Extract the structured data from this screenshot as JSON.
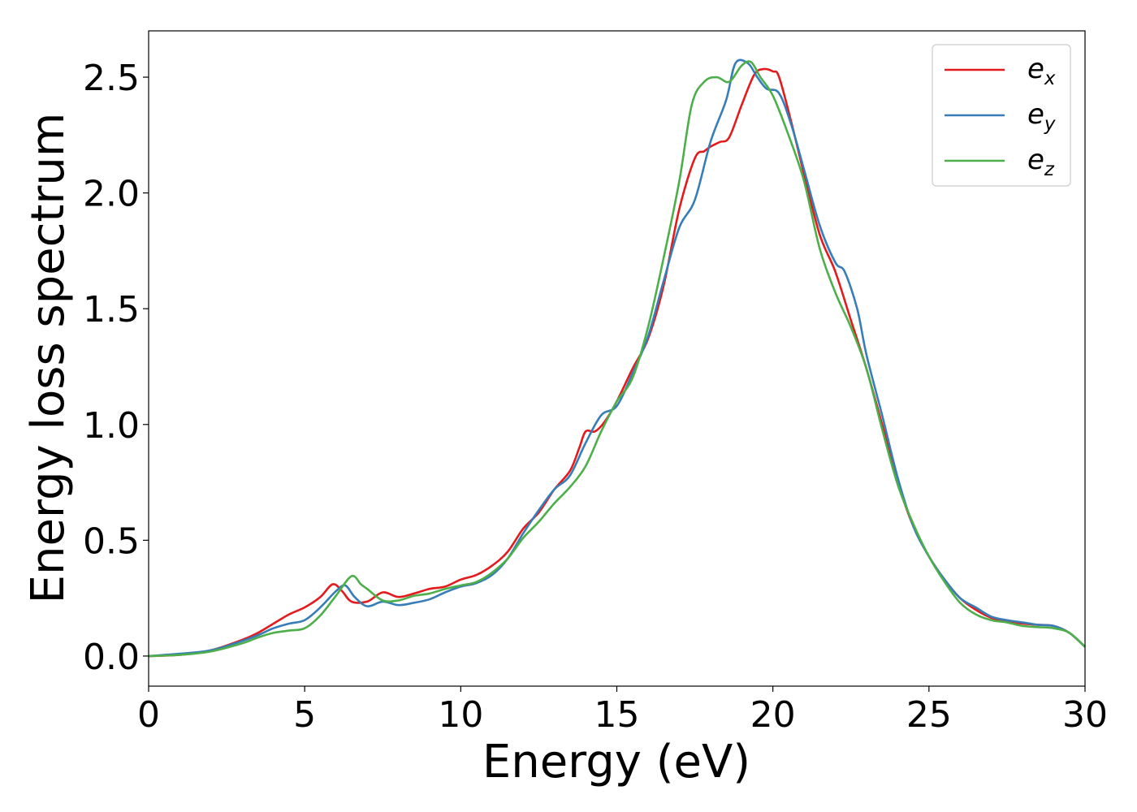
{
  "chart_data": {
    "type": "line",
    "xlabel": "Energy (eV)",
    "ylabel": "Energy loss spectrum",
    "xlim": [
      0,
      30
    ],
    "ylim": [
      -0.13,
      2.7
    ],
    "x_ticks": [
      0,
      5,
      10,
      15,
      20,
      25,
      30
    ],
    "x_tick_labels": [
      "0",
      "5",
      "10",
      "15",
      "20",
      "25",
      "30"
    ],
    "y_ticks": [
      0.0,
      0.5,
      1.0,
      1.5,
      2.0,
      2.5
    ],
    "y_tick_labels": [
      "0.0",
      "0.5",
      "1.0",
      "1.5",
      "2.0",
      "2.5"
    ],
    "grid": false,
    "legend_position": "top-right",
    "series": [
      {
        "name": "e_x",
        "label_base": "e",
        "label_sub": "x",
        "color": "#e41a1c",
        "points": [
          [
            0,
            0
          ],
          [
            1,
            0.005
          ],
          [
            2,
            0.025
          ],
          [
            3,
            0.07
          ],
          [
            3.5,
            0.1
          ],
          [
            4,
            0.14
          ],
          [
            4.5,
            0.18
          ],
          [
            5,
            0.21
          ],
          [
            5.5,
            0.255
          ],
          [
            5.9,
            0.31
          ],
          [
            6.2,
            0.28
          ],
          [
            6.5,
            0.235
          ],
          [
            7,
            0.235
          ],
          [
            7.5,
            0.275
          ],
          [
            8,
            0.255
          ],
          [
            8.5,
            0.27
          ],
          [
            9,
            0.29
          ],
          [
            9.5,
            0.3
          ],
          [
            10,
            0.33
          ],
          [
            10.5,
            0.35
          ],
          [
            11,
            0.39
          ],
          [
            11.5,
            0.45
          ],
          [
            12,
            0.55
          ],
          [
            12.5,
            0.62
          ],
          [
            13,
            0.72
          ],
          [
            13.5,
            0.8
          ],
          [
            13.8,
            0.9
          ],
          [
            14,
            0.97
          ],
          [
            14.3,
            0.97
          ],
          [
            14.6,
            1.01
          ],
          [
            15,
            1.1
          ],
          [
            15.5,
            1.24
          ],
          [
            16,
            1.37
          ],
          [
            16.5,
            1.6
          ],
          [
            17,
            1.93
          ],
          [
            17.5,
            2.15
          ],
          [
            17.8,
            2.18
          ],
          [
            18,
            2.2
          ],
          [
            18.3,
            2.22
          ],
          [
            18.6,
            2.24
          ],
          [
            19,
            2.38
          ],
          [
            19.4,
            2.51
          ],
          [
            19.7,
            2.535
          ],
          [
            20,
            2.525
          ],
          [
            20.2,
            2.5
          ],
          [
            20.6,
            2.3
          ],
          [
            21,
            2.08
          ],
          [
            21.5,
            1.82
          ],
          [
            22,
            1.66
          ],
          [
            22.5,
            1.45
          ],
          [
            23,
            1.24
          ],
          [
            23.5,
            1.0
          ],
          [
            24,
            0.75
          ],
          [
            24.5,
            0.56
          ],
          [
            25,
            0.43
          ],
          [
            25.5,
            0.33
          ],
          [
            26,
            0.25
          ],
          [
            26.5,
            0.2
          ],
          [
            27,
            0.165
          ],
          [
            27.5,
            0.15
          ],
          [
            28,
            0.14
          ],
          [
            28.5,
            0.135
          ],
          [
            29,
            0.13
          ],
          [
            29.5,
            0.1
          ],
          [
            30,
            0.04
          ]
        ]
      },
      {
        "name": "e_y",
        "label_base": "e",
        "label_sub": "y",
        "color": "#377eb8",
        "points": [
          [
            0,
            0
          ],
          [
            1,
            0.01
          ],
          [
            2,
            0.025
          ],
          [
            3,
            0.065
          ],
          [
            3.5,
            0.09
          ],
          [
            4,
            0.12
          ],
          [
            4.5,
            0.14
          ],
          [
            5,
            0.155
          ],
          [
            5.5,
            0.21
          ],
          [
            6,
            0.28
          ],
          [
            6.3,
            0.305
          ],
          [
            6.6,
            0.255
          ],
          [
            7,
            0.215
          ],
          [
            7.5,
            0.235
          ],
          [
            8,
            0.22
          ],
          [
            8.5,
            0.23
          ],
          [
            9,
            0.245
          ],
          [
            9.5,
            0.275
          ],
          [
            10,
            0.3
          ],
          [
            10.5,
            0.315
          ],
          [
            11,
            0.35
          ],
          [
            11.5,
            0.42
          ],
          [
            12,
            0.53
          ],
          [
            12.5,
            0.63
          ],
          [
            13,
            0.72
          ],
          [
            13.5,
            0.78
          ],
          [
            14,
            0.92
          ],
          [
            14.5,
            1.04
          ],
          [
            15,
            1.08
          ],
          [
            15.5,
            1.22
          ],
          [
            16,
            1.38
          ],
          [
            16.5,
            1.62
          ],
          [
            17,
            1.85
          ],
          [
            17.5,
            1.97
          ],
          [
            18,
            2.22
          ],
          [
            18.5,
            2.4
          ],
          [
            18.8,
            2.56
          ],
          [
            19.2,
            2.56
          ],
          [
            19.5,
            2.5
          ],
          [
            19.8,
            2.45
          ],
          [
            20.2,
            2.43
          ],
          [
            20.6,
            2.29
          ],
          [
            21,
            2.1
          ],
          [
            21.5,
            1.86
          ],
          [
            22,
            1.7
          ],
          [
            22.3,
            1.66
          ],
          [
            22.7,
            1.5
          ],
          [
            23,
            1.3
          ],
          [
            23.5,
            1.04
          ],
          [
            24,
            0.77
          ],
          [
            24.5,
            0.56
          ],
          [
            25,
            0.43
          ],
          [
            25.5,
            0.33
          ],
          [
            26,
            0.25
          ],
          [
            26.5,
            0.21
          ],
          [
            27,
            0.17
          ],
          [
            27.5,
            0.155
          ],
          [
            28,
            0.145
          ],
          [
            28.5,
            0.135
          ],
          [
            29,
            0.13
          ],
          [
            29.5,
            0.1
          ],
          [
            30,
            0.04
          ]
        ]
      },
      {
        "name": "e_z",
        "label_base": "e",
        "label_sub": "z",
        "color": "#4daf4a",
        "points": [
          [
            0,
            0
          ],
          [
            1,
            0.005
          ],
          [
            2,
            0.02
          ],
          [
            3,
            0.055
          ],
          [
            3.5,
            0.08
          ],
          [
            4,
            0.1
          ],
          [
            4.5,
            0.11
          ],
          [
            5,
            0.12
          ],
          [
            5.5,
            0.175
          ],
          [
            6,
            0.26
          ],
          [
            6.5,
            0.345
          ],
          [
            6.8,
            0.31
          ],
          [
            7,
            0.29
          ],
          [
            7.5,
            0.24
          ],
          [
            8,
            0.24
          ],
          [
            8.5,
            0.26
          ],
          [
            9,
            0.27
          ],
          [
            9.5,
            0.29
          ],
          [
            10,
            0.305
          ],
          [
            10.5,
            0.32
          ],
          [
            11,
            0.36
          ],
          [
            11.5,
            0.42
          ],
          [
            12,
            0.51
          ],
          [
            12.5,
            0.58
          ],
          [
            13,
            0.66
          ],
          [
            13.5,
            0.73
          ],
          [
            14,
            0.82
          ],
          [
            14.5,
            0.97
          ],
          [
            15,
            1.1
          ],
          [
            15.5,
            1.2
          ],
          [
            16,
            1.42
          ],
          [
            16.5,
            1.72
          ],
          [
            17,
            2.05
          ],
          [
            17.4,
            2.38
          ],
          [
            17.8,
            2.48
          ],
          [
            18.2,
            2.5
          ],
          [
            18.6,
            2.48
          ],
          [
            19,
            2.55
          ],
          [
            19.3,
            2.565
          ],
          [
            19.6,
            2.5
          ],
          [
            20,
            2.42
          ],
          [
            20.5,
            2.25
          ],
          [
            21,
            2.05
          ],
          [
            21.5,
            1.76
          ],
          [
            22,
            1.57
          ],
          [
            22.5,
            1.42
          ],
          [
            23,
            1.24
          ],
          [
            23.5,
            0.98
          ],
          [
            24,
            0.74
          ],
          [
            24.5,
            0.57
          ],
          [
            25,
            0.43
          ],
          [
            25.5,
            0.32
          ],
          [
            26,
            0.23
          ],
          [
            26.5,
            0.18
          ],
          [
            27,
            0.155
          ],
          [
            27.5,
            0.145
          ],
          [
            28,
            0.13
          ],
          [
            28.5,
            0.125
          ],
          [
            29,
            0.12
          ],
          [
            29.5,
            0.1
          ],
          [
            30,
            0.04
          ]
        ]
      }
    ]
  }
}
